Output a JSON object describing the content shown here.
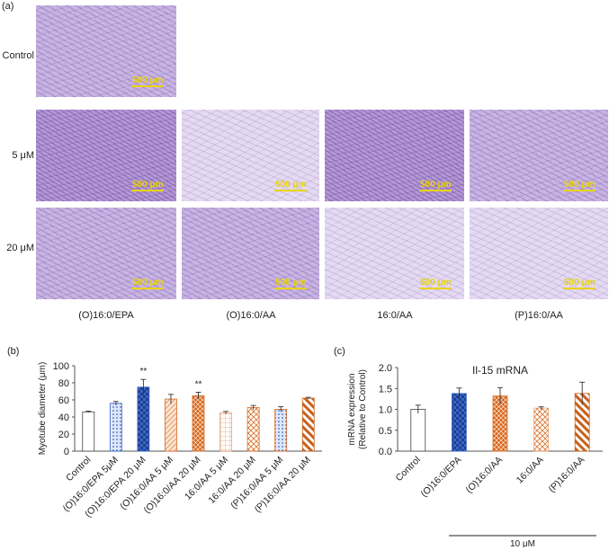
{
  "panel_a": {
    "label": "(a)",
    "row_labels": [
      "Control",
      "5 μM",
      "20 μM"
    ],
    "column_labels": [
      "(O)16:0/EPA",
      "(O)16:0/AA",
      "16:0/AA",
      "(P)16:0/AA"
    ],
    "scale_bar": "500 μm"
  },
  "panel_b": {
    "label": "(b)"
  },
  "panel_c": {
    "label": "(c)",
    "bracket_label": "10 μM"
  },
  "chart_data": [
    {
      "type": "bar",
      "title": "",
      "ylabel": "Myotube diameter (μm)",
      "xlabel": "",
      "ylim": [
        0,
        100
      ],
      "yticks": [
        0,
        20,
        40,
        60,
        80,
        100
      ],
      "categories": [
        "Control",
        "(O)16:0/EPA 5μM",
        "(O)16:0/EPA 20 μM",
        "(O)16:0/AA 5 μM",
        "(O)16:0/AA 20 μM",
        "16:0/AA 5 μM",
        "16:0/AA 20 μM",
        "(P)16:0/AA 5 μM",
        "(P)16:0/AA 20 μM"
      ],
      "values": [
        46,
        56,
        75,
        61,
        65,
        45,
        51,
        49,
        62
      ],
      "errors": [
        0.8,
        2.2,
        9,
        5.5,
        4,
        1.5,
        2.5,
        3,
        1
      ],
      "annotations": [
        "",
        "",
        "**",
        "",
        "**",
        "",
        "",
        "",
        ""
      ],
      "colors": [
        "#ffffff",
        "#3a66c6",
        "#3a66c6",
        "#d9681e",
        "#d9681e",
        "#e8a070",
        "#d9681e",
        "#d9681e",
        "#c9601a"
      ],
      "patterns": [
        "none",
        "dots",
        "check",
        "hatch",
        "cross",
        "grid",
        "diamond",
        "dots",
        "stripe"
      ],
      "grid": false
    },
    {
      "type": "bar",
      "title": "Il-15 mRNA",
      "ylabel": "mRNA expression\n(Relative to Control)",
      "xlabel": "",
      "ylim": [
        0,
        2.0
      ],
      "yticks": [
        "0.0",
        "0.5",
        "1.0",
        "1.5",
        "2.0"
      ],
      "categories": [
        "Control",
        "(O)16:0/EPA",
        "(O)16:0/AA",
        "16:0/AA",
        "(P)16:0/AA"
      ],
      "values": [
        1.0,
        1.38,
        1.32,
        1.03,
        1.38
      ],
      "errors": [
        0.1,
        0.13,
        0.2,
        0.03,
        0.27
      ],
      "colors": [
        "#ffffff",
        "#3a66c6",
        "#d9681e",
        "#e8a070",
        "#c9601a"
      ],
      "patterns": [
        "none",
        "check",
        "cross",
        "diamond",
        "stripe"
      ],
      "grid": false
    }
  ]
}
